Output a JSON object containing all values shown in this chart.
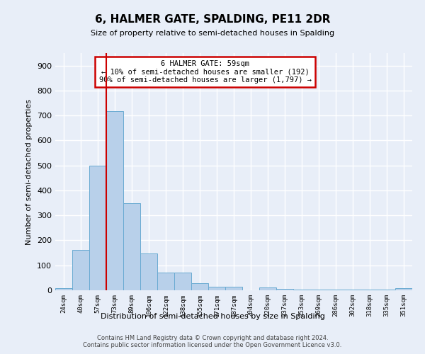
{
  "title": "6, HALMER GATE, SPALDING, PE11 2DR",
  "subtitle": "Size of property relative to semi-detached houses in Spalding",
  "xlabel": "Distribution of semi-detached houses by size in Spalding",
  "ylabel": "Number of semi-detached properties",
  "categories": [
    "24sqm",
    "40sqm",
    "57sqm",
    "73sqm",
    "89sqm",
    "106sqm",
    "122sqm",
    "138sqm",
    "155sqm",
    "171sqm",
    "187sqm",
    "204sqm",
    "220sqm",
    "237sqm",
    "253sqm",
    "269sqm",
    "286sqm",
    "302sqm",
    "318sqm",
    "335sqm",
    "351sqm"
  ],
  "values": [
    8,
    163,
    500,
    718,
    350,
    148,
    70,
    70,
    28,
    13,
    13,
    0,
    10,
    5,
    3,
    3,
    3,
    3,
    3,
    3,
    8
  ],
  "bar_color": "#b8d0ea",
  "bar_edge_color": "#6aabd2",
  "annotation_text_line1": "6 HALMER GATE: 59sqm",
  "annotation_text_line2": "← 10% of semi-detached houses are smaller (192)",
  "annotation_text_line3": "90% of semi-detached houses are larger (1,797) →",
  "bg_color": "#e8eef8",
  "plot_bg_color": "#e8eef8",
  "grid_color": "#ffffff",
  "annotation_box_color": "#ffffff",
  "annotation_box_edge": "#cc0000",
  "vline_color": "#cc0000",
  "footer_line1": "Contains HM Land Registry data © Crown copyright and database right 2024.",
  "footer_line2": "Contains public sector information licensed under the Open Government Licence v3.0.",
  "ylim": [
    0,
    950
  ]
}
